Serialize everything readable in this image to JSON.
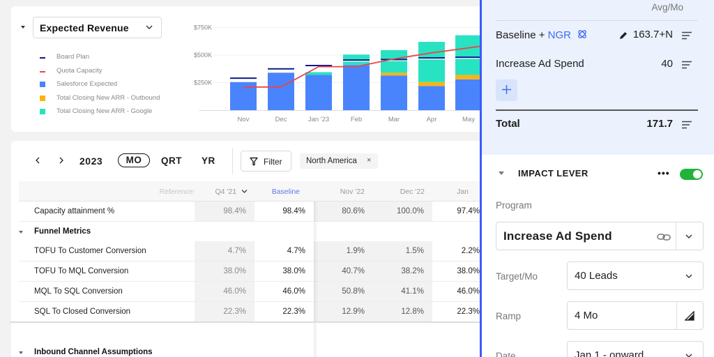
{
  "chart_card": {
    "metric_select": "Expected Revenue",
    "legend": [
      {
        "label": "Board Plan",
        "color": "#0f1a8c",
        "kind": "line"
      },
      {
        "label": "Quota Capacity",
        "color": "#e8454a",
        "kind": "line"
      },
      {
        "label": "Salesforce Expected",
        "color": "#4a84fc",
        "kind": "box"
      },
      {
        "label": "Total Closing New ARR - Outbound",
        "color": "#fbb40f",
        "kind": "box"
      },
      {
        "label": "Total Closing New ARR - Google",
        "color": "#28e3c2",
        "kind": "box"
      }
    ]
  },
  "chart_data": {
    "type": "bar",
    "stacked": true,
    "title": "Expected Revenue",
    "xlabel": "",
    "ylabel": "",
    "categories": [
      "Nov",
      "Dec",
      "Jan '23",
      "Feb",
      "Mar",
      "Apr",
      "May"
    ],
    "y_ticks": [
      "$250K",
      "$500K",
      "$750K"
    ],
    "y_tick_values": [
      250000,
      500000,
      750000
    ],
    "ylim": [
      0,
      750000
    ],
    "grid": true,
    "legend_position": "left",
    "series": [
      {
        "name": "Salesforce Expected",
        "type": "bar",
        "color": "#4a84fc",
        "values": [
          255000,
          340000,
          320000,
          410000,
          315000,
          220000,
          280000
        ]
      },
      {
        "name": "Total Closing New ARR - Outbound",
        "type": "bar",
        "color": "#fbb40f",
        "values": [
          0,
          0,
          0,
          0,
          25000,
          35000,
          40000
        ]
      },
      {
        "name": "Total Closing New ARR - Google",
        "type": "bar",
        "color": "#28e3c2",
        "values": [
          0,
          0,
          25000,
          95000,
          205000,
          365000,
          360000
        ]
      },
      {
        "name": "Board Plan",
        "type": "marker",
        "color": "#0f1a8c",
        "values": [
          290000,
          375000,
          405000,
          455000,
          460000,
          475000,
          480000
        ]
      },
      {
        "name": "Quota Capacity",
        "type": "line",
        "color": "#e8454a",
        "values": [
          210000,
          210000,
          395000,
          395000,
          465000,
          520000,
          565000
        ]
      }
    ]
  },
  "toolbar": {
    "prev": "‹",
    "next": "›",
    "year": "2023",
    "periods": [
      "MO",
      "QRT",
      "YR"
    ],
    "active_period": "MO",
    "filter_label": "Filter",
    "filter_chip": "North America",
    "filter_chip_remove": "×"
  },
  "table": {
    "reference_label": "Reference:",
    "columns": [
      "Q4 '21",
      "Baseline",
      "Nov '22",
      "Dec '22",
      "Jan"
    ],
    "rows": [
      {
        "type": "metric",
        "label": "Capacity attainment %",
        "values": [
          "98.4%",
          "98.4%",
          "80.6%",
          "100.0%",
          "97.4%"
        ]
      },
      {
        "type": "section",
        "label": "Funnel Metrics"
      },
      {
        "type": "metric",
        "label": "TOFU To Customer Conversion",
        "values": [
          "4.7%",
          "4.7%",
          "1.9%",
          "1.5%",
          "2.2%"
        ]
      },
      {
        "type": "metric",
        "label": "TOFU To MQL Conversion",
        "values": [
          "38.0%",
          "38.0%",
          "40.7%",
          "38.2%",
          "38.0%"
        ]
      },
      {
        "type": "metric",
        "label": "MQL To SQL Conversion",
        "values": [
          "46.0%",
          "46.0%",
          "50.8%",
          "41.1%",
          "46.0%"
        ]
      },
      {
        "type": "metric",
        "label": "SQL To Closed Conversion",
        "values": [
          "22.3%",
          "22.3%",
          "12.9%",
          "12.8%",
          "22.3%"
        ]
      },
      {
        "type": "section",
        "label": "Inbound Channel Assumptions"
      }
    ]
  },
  "panel": {
    "accent_color": "#3b5bfb",
    "avg_header": "Avg/Mo",
    "rows": [
      {
        "name_prefix": "Baseline + ",
        "name_link": "NGR",
        "value": "163.7+N"
      },
      {
        "name": "Increase Ad Spend",
        "value": "40"
      }
    ],
    "total_label": "Total",
    "total_value": "171.7",
    "lever": {
      "title": "IMPACT LEVER",
      "more": "•••",
      "enabled": true,
      "program_label": "Program",
      "program_value": "Increase Ad Spend",
      "target_label": "Target/Mo",
      "target_value": "40 Leads",
      "ramp_label": "Ramp",
      "ramp_value": "4 Mo",
      "date_label": "Date",
      "date_value": "Jan 1 - onward"
    }
  }
}
